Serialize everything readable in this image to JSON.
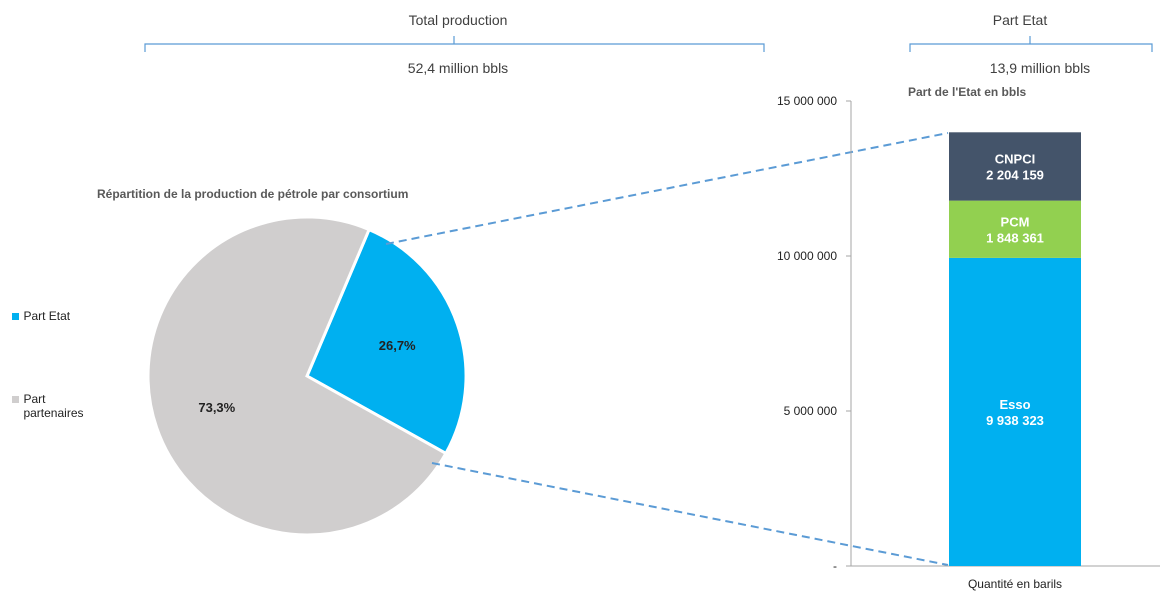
{
  "header": {
    "total_production": {
      "title": "Total production",
      "value": "52,4 million bbls"
    },
    "part_etat": {
      "title": "Part Etat",
      "value": "13,9 million bbls"
    }
  },
  "chart_data": [
    {
      "type": "pie",
      "title": "Répartition de la production de pétrole par consortium",
      "slices": [
        {
          "label": "Part Etat",
          "value": 26.7,
          "display": "26,7%",
          "color": "#00B0F0"
        },
        {
          "label": "Part partenaires",
          "value": 73.3,
          "display": "73,3%",
          "color": "#D0CECE"
        }
      ],
      "legend": "left",
      "legend_labels": [
        "Part Etat",
        "Part partenaires"
      ]
    },
    {
      "type": "bar",
      "stacked": true,
      "title": "Part de l'Etat  en bbls",
      "xlabel": "Quantité en barils",
      "categories": [
        "Quantité en barils"
      ],
      "ylim": [
        0,
        15000000
      ],
      "yticks": [
        0,
        5000000,
        10000000,
        15000000
      ],
      "ytick_labels": [
        "-",
        "5 000 000",
        "10 000 000",
        "15 000 000"
      ],
      "series": [
        {
          "name": "Esso",
          "values": [
            9938323
          ],
          "value_label": "9 938 323",
          "color": "#00B0F0"
        },
        {
          "name": "PCM",
          "values": [
            1848361
          ],
          "value_label": "1 848 361",
          "color": "#92D050"
        },
        {
          "name": "CNPCI",
          "values": [
            2204159
          ],
          "value_label": "2 204 159",
          "color": "#44546A"
        }
      ]
    }
  ],
  "colors": {
    "brace": "#5B9BD5",
    "connector": "#5B9BD5",
    "axis": "#A6A6A6"
  }
}
